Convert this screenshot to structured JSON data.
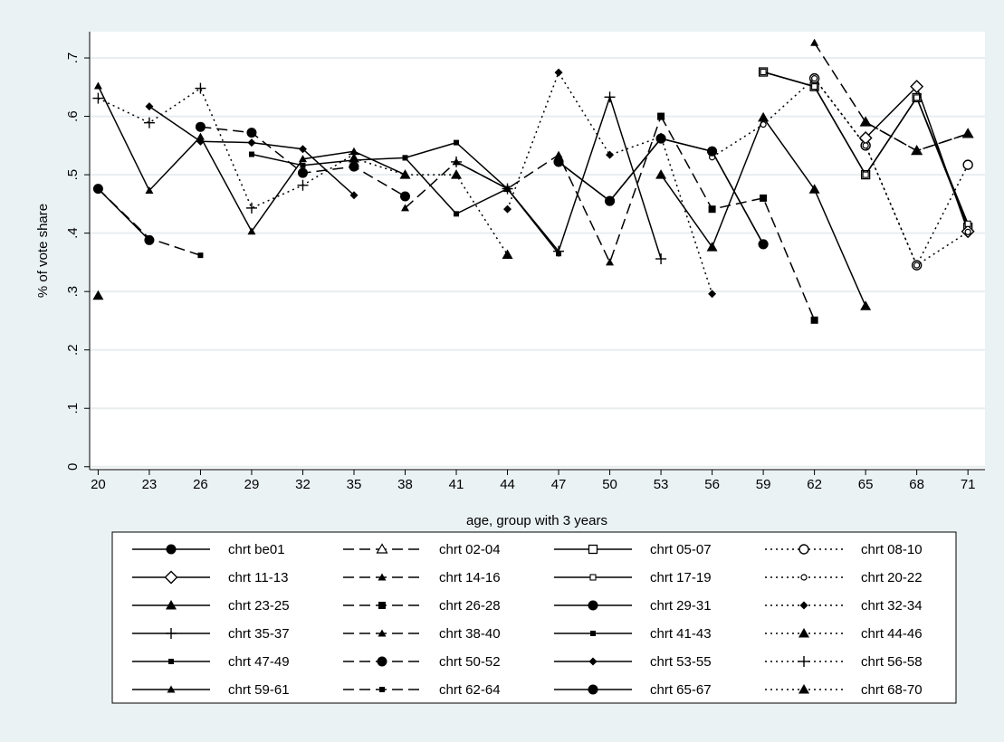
{
  "chart_data": {
    "type": "line",
    "xlabel": "age, group with 3 years",
    "ylabel": "% of vote share",
    "x_ticks": [
      20,
      23,
      26,
      29,
      32,
      35,
      38,
      41,
      44,
      47,
      50,
      53,
      56,
      59,
      62,
      65,
      68,
      71
    ],
    "y_ticks": [
      0,
      0.1,
      0.2,
      0.3,
      0.4,
      0.5,
      0.6,
      0.7
    ],
    "y_tick_labels": [
      "0",
      ".1",
      ".2",
      ".3",
      ".4",
      ".5",
      ".6",
      ".7"
    ],
    "xlim": [
      19.5,
      72
    ],
    "ylim": [
      -0.005,
      0.745
    ],
    "grid": "horizontal",
    "legend_position": "bottom",
    "series": [
      {
        "name": "chrt be01",
        "line": "solid",
        "marker": "circle",
        "points": [
          [
            47,
            0.522
          ],
          [
            50,
            0.455
          ],
          [
            53,
            0.562
          ],
          [
            56,
            0.54
          ],
          [
            59,
            0.381
          ]
        ]
      },
      {
        "name": "chrt 02-04",
        "line": "dash",
        "marker": "triangle-open",
        "points": [
          [
            65,
            0.59
          ],
          [
            68,
            0.541
          ],
          [
            71,
            0.57
          ]
        ]
      },
      {
        "name": "chrt 05-07",
        "line": "solid",
        "marker": "square-open",
        "points": [
          [
            59,
            0.676
          ],
          [
            62,
            0.651
          ],
          [
            65,
            0.5
          ],
          [
            68,
            0.632
          ],
          [
            71,
            0.41
          ]
        ]
      },
      {
        "name": "chrt 08-10",
        "line": "dot",
        "marker": "circle-open",
        "points": [
          [
            62,
            0.665
          ],
          [
            65,
            0.55
          ],
          [
            68,
            0.345
          ],
          [
            71,
            0.517
          ]
        ]
      },
      {
        "name": "chrt 11-13",
        "line": "solid",
        "marker": "diamond-open",
        "points": [
          [
            65,
            0.563
          ],
          [
            68,
            0.651
          ],
          [
            71,
            0.403
          ]
        ]
      },
      {
        "name": "chrt 14-16",
        "line": "dash",
        "marker": "triangle-small",
        "points": [
          [
            62,
            0.726
          ],
          [
            65,
            0.59
          ],
          [
            68,
            0.541
          ],
          [
            71,
            0.57
          ]
        ]
      },
      {
        "name": "chrt 17-19",
        "line": "solid",
        "marker": "square-small-open",
        "points": [
          [
            59,
            0.676
          ],
          [
            62,
            0.651
          ],
          [
            65,
            0.5
          ],
          [
            68,
            0.632
          ],
          [
            71,
            0.416
          ]
        ]
      },
      {
        "name": "chrt 20-22",
        "line": "dot",
        "marker": "circle-small-open",
        "points": [
          [
            56,
            0.53
          ],
          [
            59,
            0.586
          ],
          [
            62,
            0.665
          ],
          [
            65,
            0.55
          ],
          [
            68,
            0.345
          ],
          [
            71,
            0.402
          ]
        ]
      },
      {
        "name": "chrt 23-25",
        "line": "solid",
        "marker": "triangle",
        "points": [
          [
            53,
            0.5
          ],
          [
            56,
            0.376
          ],
          [
            59,
            0.598
          ],
          [
            62,
            0.475
          ],
          [
            65,
            0.275
          ]
        ]
      },
      {
        "name": "chrt 26-28",
        "line": "dash",
        "marker": "square",
        "points": [
          [
            53,
            0.6
          ],
          [
            56,
            0.441
          ],
          [
            59,
            0.46
          ],
          [
            62,
            0.251
          ]
        ]
      },
      {
        "name": "chrt 29-31",
        "line": "solid",
        "marker": "circle",
        "points": [
          [
            47,
            0.522
          ],
          [
            50,
            0.455
          ],
          [
            53,
            0.562
          ],
          [
            56,
            0.54
          ],
          [
            59,
            0.381
          ]
        ]
      },
      {
        "name": "chrt 32-34",
        "line": "dot",
        "marker": "diamond",
        "points": [
          [
            44,
            0.441
          ],
          [
            47,
            0.675
          ],
          [
            50,
            0.534
          ],
          [
            53,
            0.565
          ],
          [
            56,
            0.296
          ]
        ]
      },
      {
        "name": "chrt 35-37",
        "line": "solid",
        "marker": "plus",
        "points": [
          [
            41,
            0.522
          ],
          [
            44,
            0.476
          ],
          [
            47,
            0.369
          ],
          [
            50,
            0.633
          ],
          [
            53,
            0.356
          ]
        ]
      },
      {
        "name": "chrt 38-40",
        "line": "dash",
        "marker": "triangle-small",
        "points": [
          [
            38,
            0.443
          ],
          [
            41,
            0.522
          ],
          [
            44,
            0.476
          ],
          [
            47,
            0.534
          ],
          [
            50,
            0.35
          ],
          [
            53,
            0.6
          ]
        ]
      },
      {
        "name": "chrt 41-43",
        "line": "solid",
        "marker": "square-small",
        "points": [
          [
            38,
            0.529
          ],
          [
            41,
            0.433
          ],
          [
            44,
            0.476
          ],
          [
            47,
            0.365
          ]
        ]
      },
      {
        "name": "chrt 44-46",
        "line": "dot",
        "marker": "triangle",
        "points": [
          [
            35,
            0.528
          ],
          [
            38,
            0.5
          ],
          [
            41,
            0.5
          ],
          [
            44,
            0.363
          ]
        ]
      },
      {
        "name": "chrt 47-49",
        "line": "solid",
        "marker": "square-small",
        "points": [
          [
            29,
            0.535
          ],
          [
            32,
            0.516
          ],
          [
            35,
            0.525
          ],
          [
            38,
            0.529
          ],
          [
            41,
            0.555
          ],
          [
            44,
            0.476
          ]
        ]
      },
      {
        "name": "chrt 50-52",
        "line": "dash",
        "marker": "circle",
        "points": [
          [
            26,
            0.582
          ],
          [
            29,
            0.572
          ],
          [
            32,
            0.503
          ],
          [
            35,
            0.514
          ],
          [
            38,
            0.463
          ]
        ]
      },
      {
        "name": "chrt 53-55",
        "line": "solid",
        "marker": "diamond",
        "points": [
          [
            23,
            0.617
          ],
          [
            26,
            0.557
          ],
          [
            29,
            0.555
          ],
          [
            32,
            0.544
          ],
          [
            35,
            0.465
          ]
        ]
      },
      {
        "name": "chrt 56-58",
        "line": "dot",
        "marker": "plus",
        "points": [
          [
            20,
            0.631
          ],
          [
            23,
            0.589
          ],
          [
            26,
            0.648
          ],
          [
            29,
            0.443
          ],
          [
            32,
            0.482
          ],
          [
            35,
            0.535
          ]
        ]
      },
      {
        "name": "chrt 59-61",
        "line": "solid",
        "marker": "triangle-small",
        "points": [
          [
            20,
            0.652
          ],
          [
            23,
            0.473
          ],
          [
            26,
            0.565
          ],
          [
            29,
            0.403
          ],
          [
            32,
            0.527
          ],
          [
            35,
            0.54
          ],
          [
            38,
            0.5
          ]
        ]
      },
      {
        "name": "chrt 62-64",
        "line": "dash",
        "marker": "square-small",
        "points": [
          [
            20,
            0.476
          ],
          [
            23,
            0.391
          ],
          [
            26,
            0.362
          ]
        ]
      },
      {
        "name": "chrt 65-67",
        "line": "solid",
        "marker": "circle",
        "points": [
          [
            20,
            0.476
          ],
          [
            23,
            0.388
          ]
        ]
      },
      {
        "name": "chrt 68-70",
        "line": "dot",
        "marker": "triangle",
        "points": [
          [
            20,
            0.293
          ]
        ]
      }
    ]
  }
}
